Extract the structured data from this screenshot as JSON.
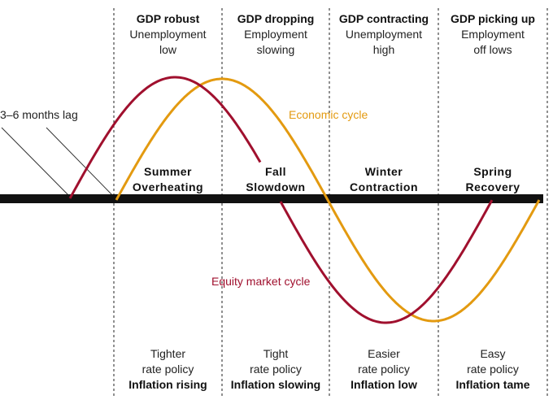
{
  "colors": {
    "economic": "#E39A10",
    "equity": "#A0102E",
    "axis": "#111111"
  },
  "phases": [
    {
      "top_bold": "GDP robust",
      "top_line1": "Unemployment",
      "top_line2": "low",
      "season": "Summer",
      "season_sub": "Overheating",
      "bottom_line1": "Tighter",
      "bottom_line2": "rate policy",
      "bottom_bold": "Inflation rising"
    },
    {
      "top_bold": "GDP dropping",
      "top_line1": "Employment",
      "top_line2": "slowing",
      "season": "Fall",
      "season_sub": "Slowdown",
      "bottom_line1": "Tight",
      "bottom_line2": "rate policy",
      "bottom_bold": "Inflation slowing"
    },
    {
      "top_bold": "GDP contracting",
      "top_line1": "Unemployment",
      "top_line2": "high",
      "season": "Winter",
      "season_sub": "Contraction",
      "bottom_line1": "Easier",
      "bottom_line2": "rate policy",
      "bottom_bold": "Inflation low"
    },
    {
      "top_bold": "GDP picking up",
      "top_line1": "Employment",
      "top_line2": "off lows",
      "season": "Spring",
      "season_sub": "Recovery",
      "bottom_line1": "Easy",
      "bottom_line2": "rate policy",
      "bottom_bold": "Inflation tame"
    }
  ],
  "labels": {
    "lag": "3–6 months lag",
    "economic_cycle": "Economic cycle",
    "equity_cycle": "Equity market cycle"
  }
}
